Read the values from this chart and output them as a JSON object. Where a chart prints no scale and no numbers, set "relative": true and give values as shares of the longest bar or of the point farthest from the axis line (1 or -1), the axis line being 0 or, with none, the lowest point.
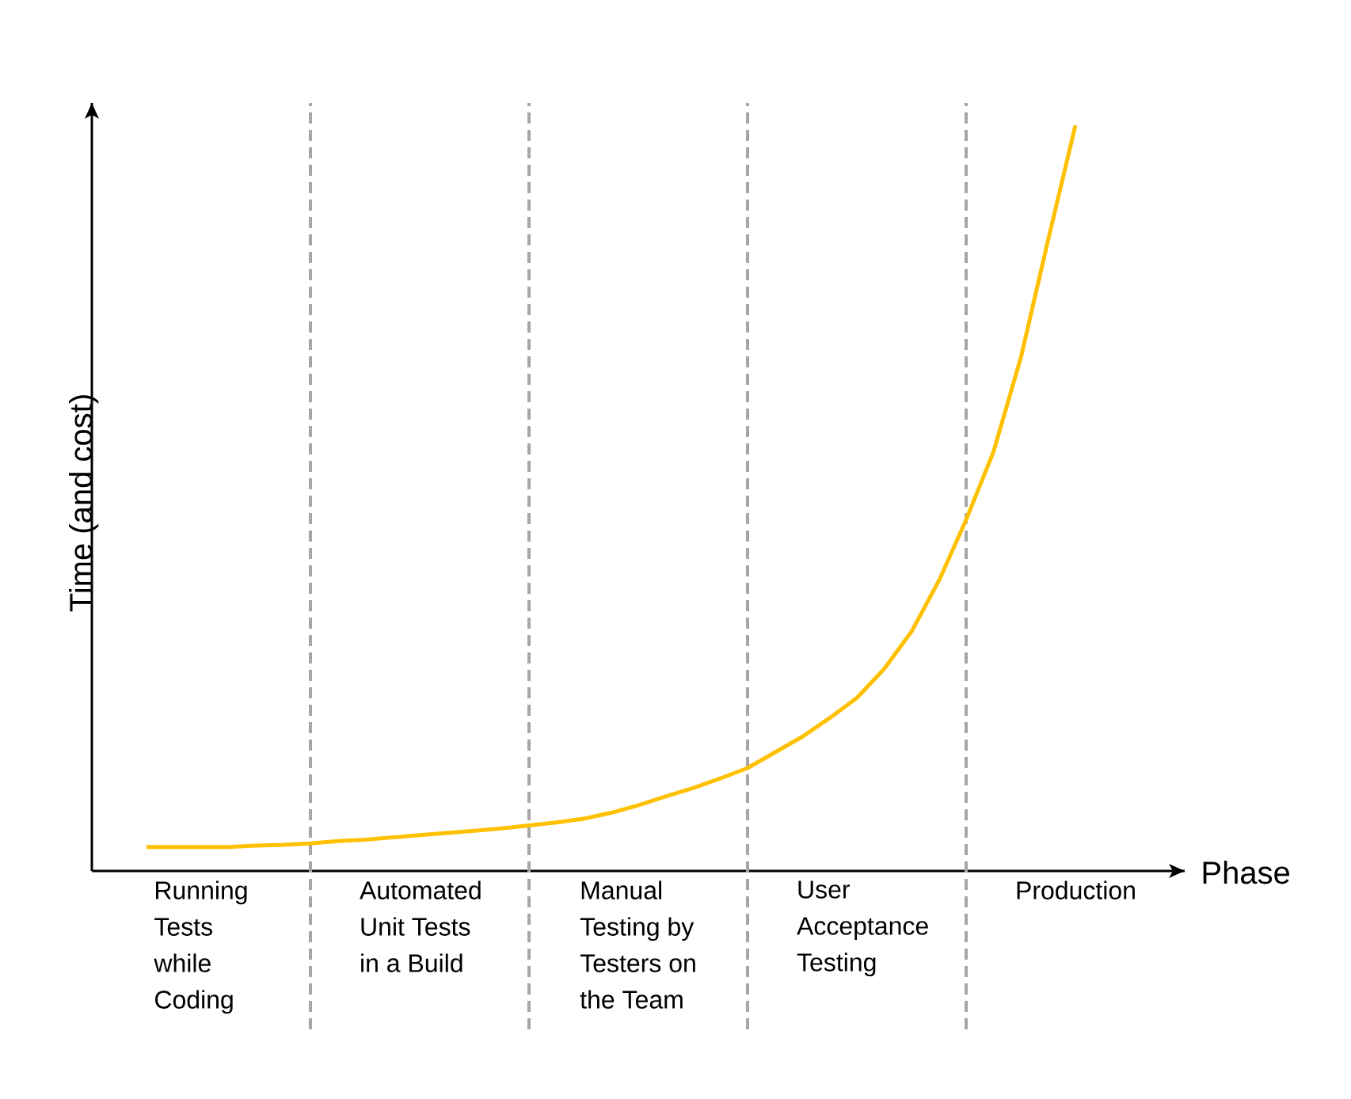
{
  "chart_data": {
    "type": "line",
    "relative": true,
    "xlabel": "Phase",
    "ylabel": "Time (and cost)",
    "marker": "none",
    "grid": "x",
    "categories": [
      null,
      null,
      "Running Tests while Coding",
      null,
      null,
      null,
      null,
      null,
      null,
      null,
      "Automated Unit Tests in a Build",
      null,
      null,
      null,
      null,
      null,
      null,
      null,
      "Manual Testing by Testers on the Team",
      null,
      null,
      null,
      null,
      null,
      null,
      null,
      "User Acceptance Testing",
      null,
      null,
      null,
      null,
      null,
      null,
      null,
      "Production"
    ],
    "series": [
      {
        "color": "#ffc000",
        "values": [
          0.032,
          0.032,
          0.032,
          0.032,
          0.034,
          0.035,
          0.037,
          0.04,
          0.042,
          0.045,
          0.048,
          0.051,
          0.054,
          0.057,
          0.061,
          0.065,
          0.07,
          0.078,
          0.088,
          0.1,
          0.111,
          0.124,
          0.138,
          0.159,
          0.18,
          0.205,
          0.232,
          0.271,
          0.321,
          0.389,
          0.471,
          0.562,
          0.688,
          0.846,
          1.0
        ]
      }
    ]
  }
}
